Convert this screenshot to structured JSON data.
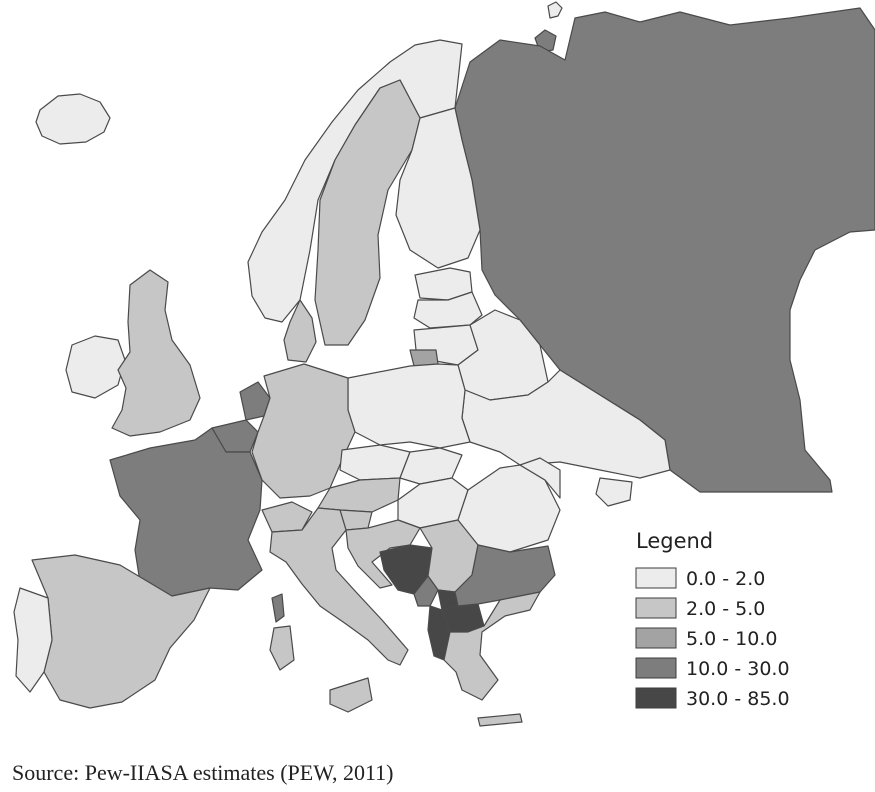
{
  "legend": {
    "title": "Legend",
    "classes": [
      {
        "label": "0.0 - 2.0",
        "color": "#ececec"
      },
      {
        "label": "2.0 - 5.0",
        "color": "#c6c6c6"
      },
      {
        "label": "5.0 - 10.0",
        "color": "#a3a3a3"
      },
      {
        "label": "10.0 - 30.0",
        "color": "#7d7d7d"
      },
      {
        "label": "30.0 - 85.0",
        "color": "#474747"
      }
    ]
  },
  "regions": [
    {
      "name": "Iceland",
      "class": 0
    },
    {
      "name": "Norway",
      "class": 0
    },
    {
      "name": "Sweden",
      "class": 1
    },
    {
      "name": "Finland",
      "class": 0
    },
    {
      "name": "Russia",
      "class": 3
    },
    {
      "name": "Estonia",
      "class": 0
    },
    {
      "name": "Latvia",
      "class": 0
    },
    {
      "name": "Lithuania",
      "class": 0
    },
    {
      "name": "Kaliningrad",
      "class": 2
    },
    {
      "name": "Belarus",
      "class": 0
    },
    {
      "name": "Ukraine",
      "class": 0
    },
    {
      "name": "Poland",
      "class": 0
    },
    {
      "name": "Ireland",
      "class": 0
    },
    {
      "name": "United Kingdom",
      "class": 1
    },
    {
      "name": "Denmark",
      "class": 1
    },
    {
      "name": "Netherlands",
      "class": 3
    },
    {
      "name": "Belgium",
      "class": 3
    },
    {
      "name": "Germany",
      "class": 1
    },
    {
      "name": "France",
      "class": 3
    },
    {
      "name": "Czech Republic",
      "class": 0
    },
    {
      "name": "Slovakia",
      "class": 0
    },
    {
      "name": "Austria",
      "class": 1
    },
    {
      "name": "Hungary",
      "class": 0
    },
    {
      "name": "Romania",
      "class": 0
    },
    {
      "name": "Moldova",
      "class": 0
    },
    {
      "name": "Spain",
      "class": 1
    },
    {
      "name": "Portugal",
      "class": 0
    },
    {
      "name": "Italy",
      "class": 1
    },
    {
      "name": "Switzerland",
      "class": 1
    },
    {
      "name": "Slovenia",
      "class": 1
    },
    {
      "name": "Croatia",
      "class": 1
    },
    {
      "name": "Bosnia and Herzegovina",
      "class": 4
    },
    {
      "name": "Serbia",
      "class": 1
    },
    {
      "name": "Montenegro",
      "class": 3
    },
    {
      "name": "Kosovo",
      "class": 4
    },
    {
      "name": "Albania",
      "class": 4
    },
    {
      "name": "North Macedonia",
      "class": 4
    },
    {
      "name": "Bulgaria",
      "class": 3
    },
    {
      "name": "Greece",
      "class": 1
    },
    {
      "name": "Sardinia",
      "class": 1
    },
    {
      "name": "Corsica",
      "class": 3
    },
    {
      "name": "Sicily",
      "class": 1
    },
    {
      "name": "Svalbard",
      "class": 0
    },
    {
      "name": "Novaya Zemlya",
      "class": 3
    },
    {
      "name": "Crimea",
      "class": 0
    },
    {
      "name": "Crete",
      "class": 1
    }
  ],
  "source": "Source: Pew-IIASA estimates (PEW, 2011)"
}
